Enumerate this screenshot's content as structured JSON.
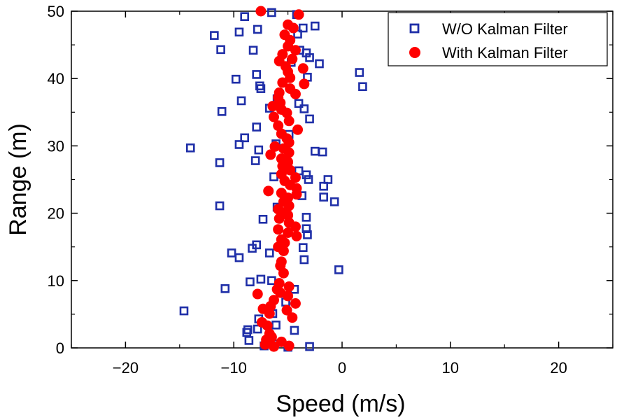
{
  "chart_data": {
    "type": "scatter",
    "title": "",
    "xlabel": "Speed (m/s)",
    "ylabel": "Range (m)",
    "xlim": [
      -25,
      25
    ],
    "ylim": [
      0,
      50
    ],
    "xticks": [
      -20,
      -10,
      0,
      10,
      20
    ],
    "xtick_labels": [
      "−20",
      "−10",
      "0",
      "10",
      "20"
    ],
    "yticks": [
      0,
      10,
      20,
      30,
      40,
      50
    ],
    "ytick_labels": [
      "0",
      "10",
      "20",
      "30",
      "40",
      "50"
    ],
    "legend_position": "top-right",
    "series": [
      {
        "name": "W/O Kalman Filter",
        "marker": "open-square",
        "color": "#1f2fa8",
        "points": [
          [
            -9,
            49.2
          ],
          [
            -6.5,
            49.8
          ],
          [
            -4.2,
            49.5
          ],
          [
            -11.8,
            46.4
          ],
          [
            -9.5,
            46.9
          ],
          [
            -7.8,
            47.3
          ],
          [
            -2.5,
            47.8
          ],
          [
            -3.6,
            47.5
          ],
          [
            -4.1,
            46.6
          ],
          [
            -11.2,
            44.3
          ],
          [
            -8.2,
            44.2
          ],
          [
            -3.9,
            44.2
          ],
          [
            -3.0,
            43.1
          ],
          [
            -3.3,
            43.8
          ],
          [
            -2.1,
            42.2
          ],
          [
            -4.7,
            42.4
          ],
          [
            -9.8,
            39.9
          ],
          [
            -7.9,
            40.6
          ],
          [
            -7.6,
            38.9
          ],
          [
            -7.5,
            38.5
          ],
          [
            -3.2,
            40.2
          ],
          [
            1.6,
            40.9
          ],
          [
            1.9,
            38.8
          ],
          [
            -9.3,
            36.7
          ],
          [
            -6.0,
            37.0
          ],
          [
            -4.0,
            36.3
          ],
          [
            -11.1,
            35.1
          ],
          [
            -3.5,
            35.5
          ],
          [
            -3.0,
            34.0
          ],
          [
            -6.7,
            35.6
          ],
          [
            -7.9,
            32.8
          ],
          [
            -9.0,
            31.2
          ],
          [
            -14.0,
            29.7
          ],
          [
            -9.5,
            30.2
          ],
          [
            -7.7,
            29.4
          ],
          [
            -6.1,
            30.3
          ],
          [
            -4.9,
            31.7
          ],
          [
            -2.5,
            29.2
          ],
          [
            -1.8,
            29.1
          ],
          [
            -11.3,
            27.5
          ],
          [
            -8.0,
            27.8
          ],
          [
            -4.0,
            26.3
          ],
          [
            -3.3,
            25.7
          ],
          [
            -3.1,
            25.0
          ],
          [
            -1.3,
            25.0
          ],
          [
            -6.3,
            25.4
          ],
          [
            -1.7,
            24.0
          ],
          [
            -1.7,
            22.4
          ],
          [
            -0.7,
            21.7
          ],
          [
            -3.7,
            22.6
          ],
          [
            -11.3,
            21.1
          ],
          [
            -6.0,
            20.9
          ],
          [
            -7.3,
            19.1
          ],
          [
            -3.3,
            19.4
          ],
          [
            -3.3,
            17.7
          ],
          [
            -3.2,
            16.8
          ],
          [
            -8.3,
            14.8
          ],
          [
            -7.9,
            15.3
          ],
          [
            -6.7,
            14.1
          ],
          [
            -3.6,
            14.9
          ],
          [
            -3.5,
            13.1
          ],
          [
            -10.2,
            14.1
          ],
          [
            -9.5,
            13.4
          ],
          [
            -0.3,
            11.6
          ],
          [
            -8.5,
            9.8
          ],
          [
            -7.5,
            10.2
          ],
          [
            -6.5,
            10.0
          ],
          [
            -4.4,
            8.7
          ],
          [
            -10.8,
            8.8
          ],
          [
            -5.2,
            6.8
          ],
          [
            -14.6,
            5.5
          ],
          [
            -6.4,
            5.1
          ],
          [
            -7.7,
            4.3
          ],
          [
            -6.1,
            3.4
          ],
          [
            -8.7,
            2.7
          ],
          [
            -8.8,
            2.3
          ],
          [
            -4.4,
            2.6
          ],
          [
            -7.8,
            2.8
          ],
          [
            -8.6,
            1.1
          ],
          [
            -6.2,
            0.6
          ],
          [
            -5.0,
            0.1
          ],
          [
            -3.0,
            0.2
          ],
          [
            -7.2,
            0.3
          ]
        ]
      },
      {
        "name": "With Kalman Filter",
        "marker": "filled-circle",
        "color": "#ff0000",
        "points": [
          [
            -7.5,
            50.0
          ],
          [
            -4.0,
            49.5
          ],
          [
            -5.0,
            48.0
          ],
          [
            -4.5,
            47.5
          ],
          [
            -5.3,
            46.5
          ],
          [
            -4.8,
            45.7
          ],
          [
            -5.0,
            44.8
          ],
          [
            -4.3,
            44.2
          ],
          [
            -5.5,
            43.6
          ],
          [
            -4.6,
            42.9
          ],
          [
            -5.8,
            42.6
          ],
          [
            -5.2,
            41.8
          ],
          [
            -3.6,
            41.5
          ],
          [
            -5.0,
            41.0
          ],
          [
            -4.8,
            40.1
          ],
          [
            -5.5,
            39.4
          ],
          [
            -3.5,
            39.2
          ],
          [
            -4.8,
            38.5
          ],
          [
            -5.8,
            37.9
          ],
          [
            -4.3,
            37.7
          ],
          [
            -5.9,
            37.2
          ],
          [
            -5.7,
            36.4
          ],
          [
            -6.4,
            35.9
          ],
          [
            -5.6,
            35.4
          ],
          [
            -5.1,
            34.9
          ],
          [
            -6.3,
            34.3
          ],
          [
            -4.9,
            33.7
          ],
          [
            -5.9,
            33.0
          ],
          [
            -4.1,
            32.4
          ],
          [
            -5.6,
            31.8
          ],
          [
            -5.1,
            31.1
          ],
          [
            -4.9,
            30.5
          ],
          [
            -6.2,
            29.9
          ],
          [
            -5.4,
            29.6
          ],
          [
            -4.9,
            29.0
          ],
          [
            -6.6,
            28.7
          ],
          [
            -5.6,
            28.1
          ],
          [
            -5.0,
            27.6
          ],
          [
            -5.5,
            27.0
          ],
          [
            -4.8,
            26.4
          ],
          [
            -5.6,
            25.8
          ],
          [
            -4.3,
            25.3
          ],
          [
            -5.3,
            24.8
          ],
          [
            -4.8,
            24.2
          ],
          [
            -4.2,
            23.7
          ],
          [
            -6.8,
            23.3
          ],
          [
            -5.6,
            23.0
          ],
          [
            -4.2,
            22.8
          ],
          [
            -5.0,
            22.3
          ],
          [
            -5.4,
            21.7
          ],
          [
            -4.9,
            21.1
          ],
          [
            -5.9,
            20.6
          ],
          [
            -5.4,
            20.1
          ],
          [
            -5.0,
            19.7
          ],
          [
            -5.8,
            19.2
          ],
          [
            -4.9,
            18.6
          ],
          [
            -4.3,
            18.0
          ],
          [
            -5.9,
            17.6
          ],
          [
            -5.0,
            17.1
          ],
          [
            -4.2,
            16.6
          ],
          [
            -5.6,
            16.1
          ],
          [
            -5.3,
            15.6
          ],
          [
            -5.9,
            15.0
          ],
          [
            -5.4,
            14.4
          ],
          [
            -5.6,
            12.8
          ],
          [
            -5.7,
            12.2
          ],
          [
            -5.4,
            11.1
          ],
          [
            -5.8,
            9.6
          ],
          [
            -4.9,
            9.1
          ],
          [
            -6.0,
            8.7
          ],
          [
            -5.7,
            8.2
          ],
          [
            -7.8,
            8.0
          ],
          [
            -5.0,
            7.7
          ],
          [
            -6.3,
            7.1
          ],
          [
            -4.3,
            6.6
          ],
          [
            -6.6,
            6.2
          ],
          [
            -7.3,
            5.8
          ],
          [
            -5.1,
            5.6
          ],
          [
            -6.7,
            5.1
          ],
          [
            -4.6,
            4.5
          ],
          [
            -7.4,
            3.8
          ],
          [
            -6.9,
            3.3
          ],
          [
            -6.7,
            2.1
          ],
          [
            -6.5,
            1.6
          ],
          [
            -7.0,
            1.2
          ],
          [
            -5.6,
            0.9
          ],
          [
            -7.1,
            0.5
          ],
          [
            -4.9,
            0.3
          ],
          [
            -6.3,
            0.2
          ]
        ]
      }
    ]
  }
}
